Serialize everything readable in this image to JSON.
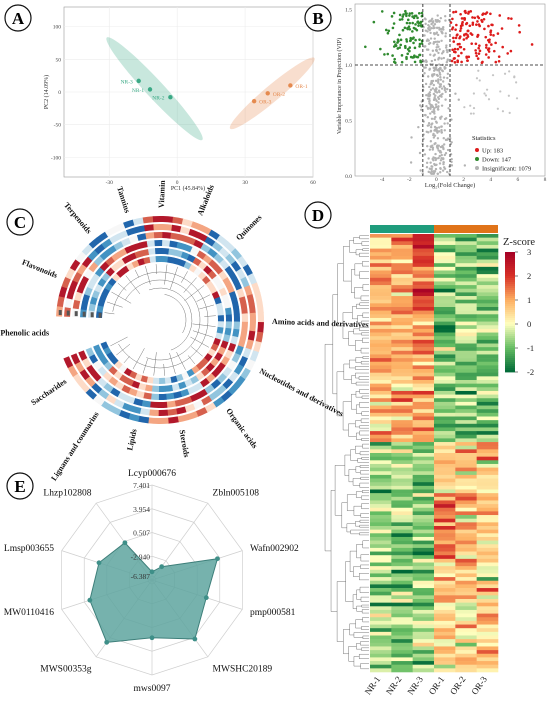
{
  "panels": {
    "A": "A",
    "B": "B",
    "C": "C",
    "D": "D",
    "E": "E"
  },
  "chart_data": [
    {
      "panel": "A",
      "type": "scatter",
      "xlabel": "PC1 (45.84%)",
      "ylabel": "PC2 (14.09%)",
      "xlim": [
        -50,
        60
      ],
      "ylim": [
        -130,
        130
      ],
      "xticks": [
        "-30",
        "0",
        "30",
        "60"
      ],
      "yticks": [
        "100",
        "50",
        "0",
        "-50",
        "-100"
      ],
      "colors": {
        "NR": "#3aa985",
        "OR": "#e58a4f"
      },
      "series": [
        {
          "name": "NR",
          "points": [
            {
              "label": "NR-1",
              "x": -12,
              "y": 4
            },
            {
              "label": "NR-2",
              "x": -3,
              "y": -8
            },
            {
              "label": "NR-3",
              "x": -17,
              "y": 17
            }
          ]
        },
        {
          "name": "OR",
          "points": [
            {
              "label": "OR-1",
              "x": 50,
              "y": 10
            },
            {
              "label": "OR-2",
              "x": 40,
              "y": -2
            },
            {
              "label": "OR-3",
              "x": 34,
              "y": -14
            }
          ]
        }
      ]
    },
    {
      "panel": "B",
      "type": "scatter",
      "xlabel": "Log₂(Fold Change)",
      "ylabel": "Variable Importance in Projection (VIP)",
      "xticks": [
        "-4",
        "-2",
        "0",
        "2",
        "4",
        "6",
        "8"
      ],
      "yticks": [
        "1.5",
        "1.0",
        "0.5",
        "0.0"
      ],
      "xlim": [
        -6,
        8
      ],
      "ylim": [
        0,
        1.55
      ],
      "thresholds": {
        "x": [
          -1,
          1
        ],
        "y": 1.0
      },
      "legend_title": "Statistics",
      "legend": [
        {
          "label": "Up: 183",
          "color": "#dd1c1c"
        },
        {
          "label": "Down: 147",
          "color": "#2f8a2f"
        },
        {
          "label": "Insignificant: 1079",
          "color": "#b3b3b3"
        }
      ]
    },
    {
      "panel": "C",
      "type": "heatmap",
      "categories": [
        "Tannins",
        "Vitamin",
        "Alkaloids",
        "Quinones",
        "Amino acids and derivatives",
        "Nucleotides and derivatives",
        "Organic acids",
        "Steroids",
        "Lipids",
        "Lignans and coumarins",
        "Saccharides",
        "Phenolic acids",
        "Flavonoids",
        "Terpenoids"
      ]
    },
    {
      "panel": "D",
      "type": "heatmap",
      "columns": [
        "NR-1",
        "NR-2",
        "NR-3",
        "OR-1",
        "OR-2",
        "OR-3"
      ],
      "group_colors": {
        "NR": "#1f9c7c",
        "OR": "#e07319"
      },
      "legend_title": "Z-score",
      "colorbar_ticks": [
        "3",
        "2",
        "1",
        "0",
        "-1",
        "-2"
      ],
      "zlim": [
        -2,
        3
      ]
    },
    {
      "panel": "E",
      "type": "radar",
      "categories": [
        "Lcyp000676",
        "Zbln005108",
        "Wafn002902",
        "pmp000581",
        "MWSHC20189",
        "mws0097",
        "MWS00353g",
        "MW0110416",
        "Lmsp003655",
        "Lhzp102808"
      ],
      "radial_ticks": [
        "7.401",
        "3.954",
        "0.507",
        "-2.940",
        "-6.387"
      ],
      "rlim": [
        -6.387,
        7.401
      ],
      "values": [
        -5.2,
        -4.0,
        3.6,
        1.9,
        4.2,
        2.0,
        4.8,
        3.1,
        1.7,
        0.3
      ],
      "fill": "#5ea59f"
    }
  ]
}
